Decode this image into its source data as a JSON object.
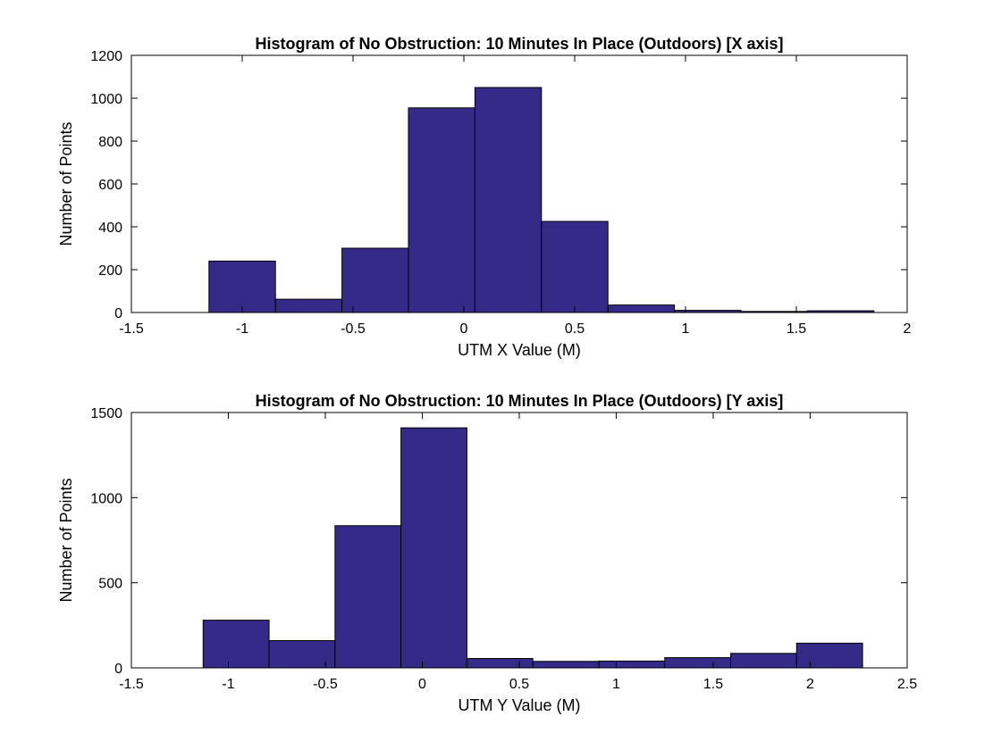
{
  "colors": {
    "bar_fill": "#352a87",
    "bar_edge": "#000000",
    "axes": "#000000",
    "background": "#ffffff"
  },
  "chart_data": [
    {
      "type": "bar",
      "subtype": "histogram",
      "title": "Histogram of No Obstruction: 10 Minutes In Place (Outdoors) [X axis]",
      "xlabel": "UTM X Value (M)",
      "ylabel": "Number of Points",
      "xlim": [
        -1.5,
        2
      ],
      "ylim": [
        0,
        1200
      ],
      "xticks": [
        -1.5,
        -1,
        -0.5,
        0,
        0.5,
        1,
        1.5,
        2
      ],
      "xtick_labels": [
        "-1.5",
        "-1",
        "-0.5",
        "0",
        "0.5",
        "1",
        "1.5",
        "2"
      ],
      "yticks": [
        0,
        200,
        400,
        600,
        800,
        1000,
        1200
      ],
      "ytick_labels": [
        "0",
        "200",
        "400",
        "600",
        "800",
        "1000",
        "1200"
      ],
      "bin_edges": [
        -1.15,
        -0.85,
        -0.55,
        -0.25,
        0.05,
        0.35,
        0.65,
        0.95,
        1.25,
        1.55,
        1.85
      ],
      "values": [
        240,
        62,
        300,
        955,
        1050,
        425,
        35,
        10,
        5,
        8
      ],
      "grid": false
    },
    {
      "type": "bar",
      "subtype": "histogram",
      "title": "Histogram of No Obstruction: 10 Minutes In Place (Outdoors) [Y axis]",
      "xlabel": "UTM Y Value (M)",
      "ylabel": "Number of Points",
      "xlim": [
        -1.5,
        2.5
      ],
      "ylim": [
        0,
        1500
      ],
      "xticks": [
        -1.5,
        -1,
        -0.5,
        0,
        0.5,
        1,
        1.5,
        2,
        2.5
      ],
      "xtick_labels": [
        "-1.5",
        "-1",
        "-0.5",
        "0",
        "0.5",
        "1",
        "1.5",
        "2",
        "2.5"
      ],
      "yticks": [
        0,
        500,
        1000,
        1500
      ],
      "ytick_labels": [
        "0",
        "500",
        "1000",
        "1500"
      ],
      "bin_edges": [
        -1.13,
        -0.79,
        -0.45,
        -0.11,
        0.23,
        0.57,
        0.91,
        1.25,
        1.59,
        1.93,
        2.27
      ],
      "values": [
        280,
        160,
        835,
        1410,
        55,
        38,
        40,
        60,
        85,
        145
      ],
      "grid": false
    }
  ]
}
